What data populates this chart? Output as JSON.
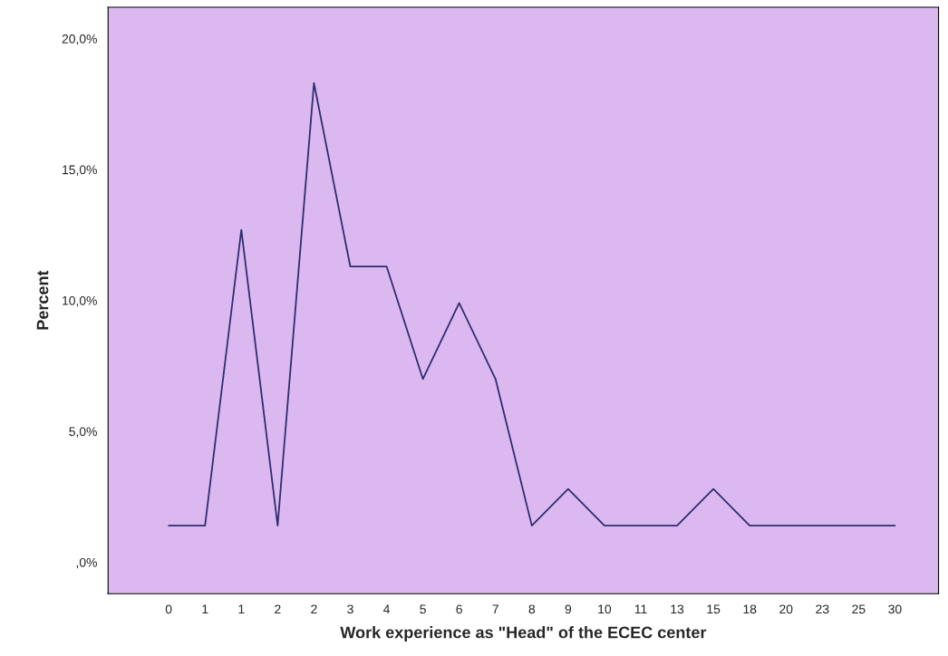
{
  "chart_data": {
    "type": "line",
    "xlabel": "Work experience as \"Head\" of the ECEC center",
    "ylabel": "Percent",
    "categories": [
      "0",
      "1",
      "1",
      "2",
      "2",
      "3",
      "4",
      "5",
      "6",
      "7",
      "8",
      "9",
      "10",
      "11",
      "13",
      "15",
      "18",
      "20",
      "23",
      "25",
      "30"
    ],
    "series": [
      {
        "color": "#2e2e6e",
        "values": [
          1.4,
          1.4,
          12.7,
          1.4,
          18.3,
          11.3,
          11.3,
          7.0,
          9.9,
          7.0,
          1.4,
          2.8,
          1.4,
          1.4,
          1.4,
          2.8,
          1.4,
          1.4,
          1.4,
          1.4,
          1.4
        ]
      }
    ],
    "ylim": [
      -1.2,
      21.2
    ],
    "yticks": [
      {
        "value": 0,
        "label": ",0%"
      },
      {
        "value": 5,
        "label": "5,0%"
      },
      {
        "value": 10,
        "label": "10,0%"
      },
      {
        "value": 15,
        "label": "15,0%"
      },
      {
        "value": 20,
        "label": "20,0%"
      }
    ],
    "grid": false,
    "marker": "none",
    "line_style": "solid"
  }
}
